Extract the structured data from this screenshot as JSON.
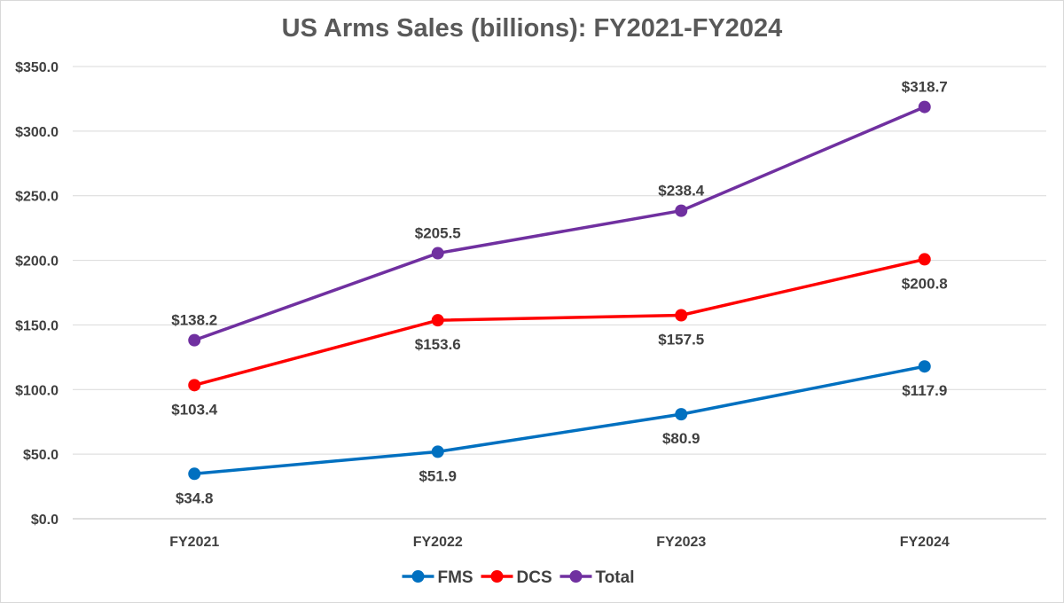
{
  "chart_data": {
    "type": "line",
    "title": "US Arms Sales (billions): FY2021-FY2024",
    "xlabel": "",
    "ylabel": "",
    "categories": [
      "FY2021",
      "FY2022",
      "FY2023",
      "FY2024"
    ],
    "ylim": [
      0,
      350
    ],
    "yticks": [
      0,
      50,
      100,
      150,
      200,
      250,
      300,
      350
    ],
    "ytick_labels": [
      "$0.0",
      "$50.0",
      "$100.0",
      "$150.0",
      "$200.0",
      "$250.0",
      "$300.0",
      "$350.0"
    ],
    "grid": true,
    "legend_position": "bottom",
    "series": [
      {
        "name": "FMS",
        "color": "#0070c0",
        "values": [
          34.8,
          51.9,
          80.9,
          117.9
        ],
        "labels": [
          "$34.8",
          "$51.9",
          "$80.9",
          "$117.9"
        ],
        "label_position": "below"
      },
      {
        "name": "DCS",
        "color": "#ff0000",
        "values": [
          103.4,
          153.6,
          157.5,
          200.8
        ],
        "labels": [
          "$103.4",
          "$153.6",
          "$157.5",
          "$200.8"
        ],
        "label_position": "below"
      },
      {
        "name": "Total",
        "color": "#7030a0",
        "values": [
          138.2,
          205.5,
          238.4,
          318.7
        ],
        "labels": [
          "$138.2",
          "$205.5",
          "$238.4",
          "$318.7"
        ],
        "label_position": "above"
      }
    ]
  }
}
